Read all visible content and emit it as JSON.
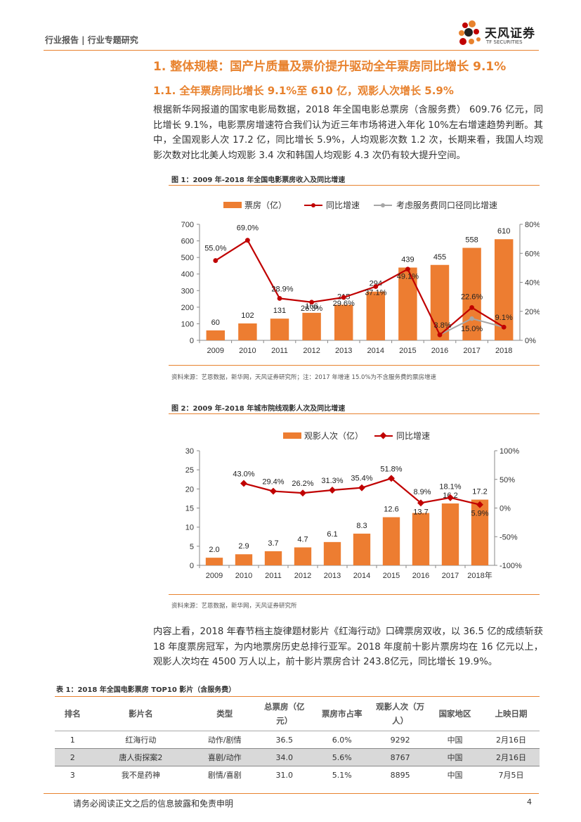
{
  "header": {
    "breadcrumb": "行业报告 | 行业专题研究",
    "brand_name": "天风证券",
    "brand_sub": "TF SECURITIES"
  },
  "heading1": "1. 整体规模：国产片质量及票价提升驱动全年票房同比增长 9.1%",
  "heading2": "1.1. 全年票房同比增长 9.1%至 610 亿，观影人次增长 5.9%",
  "paragraph1": "根据新华网报道的国家电影局数据，2018 年全国电影总票房（含服务费） 609.76 亿元，同比增长 9.1%，电影票房增速符合我们认为近三年市场将进入年化 10%左右增速趋势判断。其中，全国观影人次 17.2 亿，同比增长 5.9%，人均观影次数 1.2 次，长期来看，我国人均观影次数对比北美人均观影 3.4 次和韩国人均观影 4.3 次仍有较大提升空间。",
  "figure1": {
    "title": "图 1：2009 年-2018 年全国电影票房收入及同比增速",
    "source": "资料来源：艺恩数据，新华网，天风证券研究所；注：2017 年增速 15.0%为不含服务费的票房增速"
  },
  "figure2": {
    "title": "图 2：2009 年-2018 年城市院线观影人次及同比增速",
    "source": "资料来源：艺恩数据，新华网，天风证券研究所"
  },
  "paragraph2": "内容上看，2018 年春节档主旋律题材影片《红海行动》口碑票房双收，以 36.5 亿的成绩斩获 18 年度票房冠军，为内地票房历史总排行亚军。2018 年度前十影片票房均在 16 亿元以上，观影人次均在 4500 万人以上，前十影片票房合计 243.8亿元，同比增长 19.9%。",
  "table1": {
    "title": "表 1：2018 年全国电影票房 TOP10 影片（含服务费）",
    "headers": [
      "排名",
      "影片名",
      "类型",
      "总票房（亿元）",
      "票房市占率",
      "观影人次（万人）",
      "国家地区",
      "上映日期"
    ],
    "rows": [
      [
        "1",
        "红海行动",
        "动作/剧情",
        "36.5",
        "6.0%",
        "9292",
        "中国",
        "2月16日"
      ],
      [
        "2",
        "唐人街探案2",
        "喜剧/动作",
        "34.0",
        "5.6%",
        "8767",
        "中国",
        "2月16日"
      ],
      [
        "3",
        "我不是药神",
        "剧情/喜剧",
        "31.0",
        "5.1%",
        "8895",
        "中国",
        "7月5日"
      ]
    ]
  },
  "footer": {
    "disclaimer": "请务必阅读正文之后的信息披露和免责申明",
    "page": "4"
  },
  "chart_data": [
    {
      "type": "bar",
      "title": "2009 年-2018 年全国电影票房收入及同比增速",
      "categories": [
        "2009",
        "2010",
        "2011",
        "2012",
        "2013",
        "2014",
        "2015",
        "2016",
        "2017",
        "2018"
      ],
      "series": [
        {
          "name": "票房（亿）",
          "kind": "bar",
          "axis": "left",
          "values": [
            60,
            102,
            131,
            166,
            215,
            294,
            439,
            455,
            558,
            610
          ],
          "labels": [
            "60",
            "102",
            "131",
            "166",
            "215",
            "294",
            "439",
            "455",
            "558",
            "610"
          ]
        },
        {
          "name": "同比增速",
          "kind": "line",
          "axis": "right",
          "values": [
            55.0,
            69.0,
            28.9,
            26.3,
            29.6,
            37.1,
            49.1,
            3.8,
            22.6,
            9.1
          ],
          "labels": [
            "55.0%",
            "69.0%",
            "28.9%",
            "26.3%",
            "29.6%",
            "37.1%",
            "49.1%",
            "3.8%",
            "22.6%",
            "9.1%"
          ]
        },
        {
          "name": "考虑服务费同口径同比增速",
          "kind": "line",
          "axis": "right",
          "points": [
            [
              "2016",
              3.8
            ],
            [
              "2017",
              15.0
            ],
            [
              "2018",
              9.1
            ]
          ],
          "labels": [
            "15.0%"
          ]
        }
      ],
      "ylim_left": [
        0,
        700
      ],
      "yticks_left": [
        "0",
        "100",
        "200",
        "300",
        "400",
        "500",
        "600",
        "700"
      ],
      "ylim_right": [
        0,
        80
      ],
      "yticks_right": [
        "0%",
        "20%",
        "40%",
        "60%",
        "80%"
      ],
      "colors": {
        "bar": "#ED7D31",
        "line": "#C00000",
        "line2": "#A6A6A6"
      }
    },
    {
      "type": "bar",
      "title": "2009 年-2018 年城市院线观影人次及同比增速",
      "categories": [
        "2009",
        "2010",
        "2011",
        "2012",
        "2013",
        "2014",
        "2015",
        "2016",
        "2017",
        "2018年"
      ],
      "series": [
        {
          "name": "观影人次（亿）",
          "kind": "bar",
          "axis": "left",
          "values": [
            2.0,
            2.9,
            3.7,
            4.7,
            6.1,
            8.3,
            12.6,
            13.7,
            16.2,
            17.2
          ],
          "labels": [
            "2.0",
            "2.9",
            "3.7",
            "4.7",
            "6.1",
            "8.3",
            "12.6",
            "13.7",
            "16.2",
            "17.2"
          ]
        },
        {
          "name": "同比增速",
          "kind": "line",
          "axis": "right",
          "values": [
            null,
            43.0,
            29.4,
            26.2,
            31.3,
            35.4,
            51.8,
            8.9,
            18.1,
            5.9
          ],
          "labels": [
            "",
            "43.0%",
            "29.4%",
            "26.2%",
            "31.3%",
            "35.4%",
            "51.8%",
            "8.9%",
            "18.1%",
            "5.9%"
          ]
        }
      ],
      "ylim_left": [
        0,
        30
      ],
      "yticks_left": [
        "0",
        "5",
        "10",
        "15",
        "20",
        "25",
        "30"
      ],
      "ylim_right": [
        -100,
        100
      ],
      "yticks_right": [
        "-100%",
        "-50%",
        "0%",
        "50%",
        "100%"
      ],
      "colors": {
        "bar": "#ED7D31",
        "line": "#C00000"
      }
    }
  ]
}
